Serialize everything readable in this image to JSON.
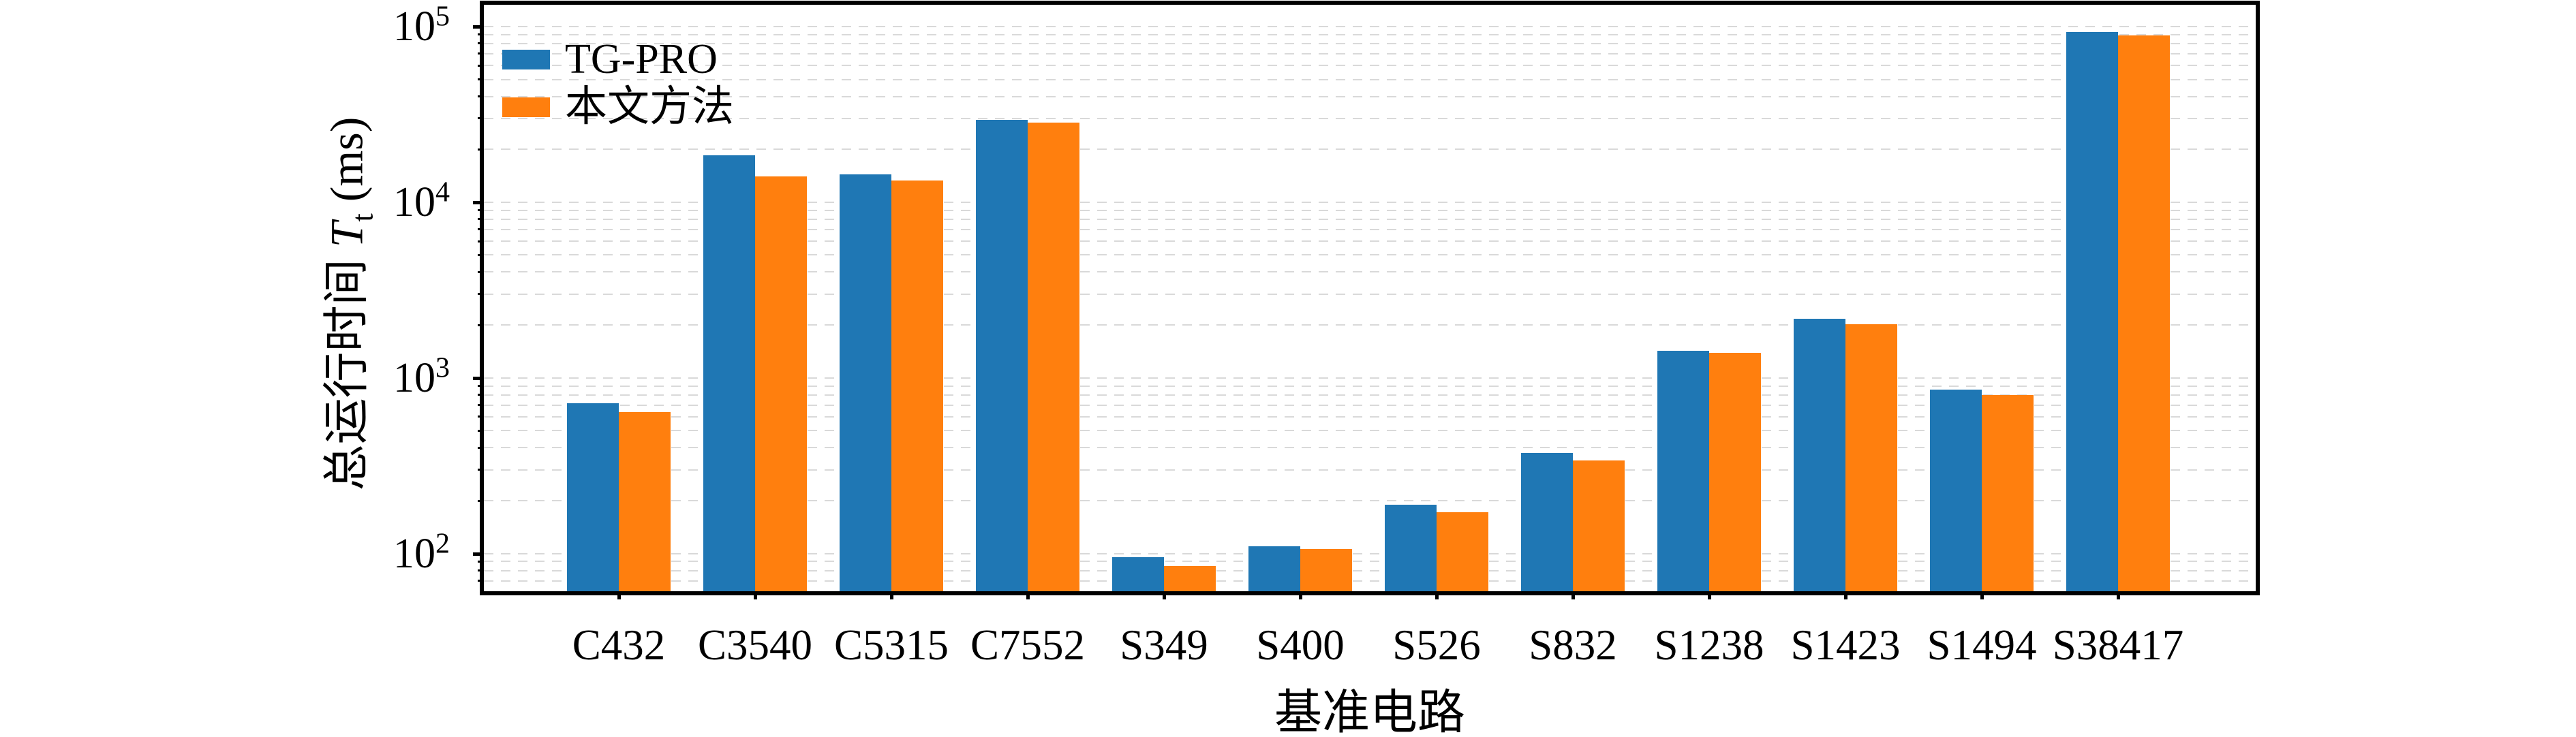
{
  "chart_data": {
    "type": "bar",
    "title": "",
    "categories": [
      "C432",
      "C3540",
      "C5315",
      "C7552",
      "S349",
      "S400",
      "S526",
      "S832",
      "S1238",
      "S1423",
      "S1494",
      "S38417"
    ],
    "series": [
      {
        "name": "TG-PRO",
        "color": "#1f77b4",
        "values": [
          720,
          18500,
          14400,
          29500,
          95,
          110,
          190,
          375,
          1420,
          2170,
          860,
          93000
        ]
      },
      {
        "name": "本文方法",
        "color": "#ff7f0e",
        "values": [
          640,
          14000,
          13300,
          28500,
          85,
          106,
          172,
          340,
          1390,
          2020,
          795,
          89000
        ]
      }
    ],
    "xlabel": "基准电路",
    "ylabel": "总运行时间 T_t (ms)",
    "ylabel_parts": {
      "prefix": "总运行时间 ",
      "var": "T",
      "sub": "t",
      "suffix": " (ms)"
    },
    "yscale": "log",
    "ylim": [
      61,
      133000
    ],
    "yticks_major": [
      {
        "value": 100,
        "base": "10",
        "exp": "2"
      },
      {
        "value": 1000,
        "base": "10",
        "exp": "3"
      },
      {
        "value": 10000,
        "base": "10",
        "exp": "4"
      },
      {
        "value": 100000,
        "base": "10",
        "exp": "5"
      }
    ],
    "yticks_minor": [
      70,
      80,
      90,
      200,
      300,
      400,
      500,
      600,
      700,
      800,
      900,
      2000,
      3000,
      4000,
      5000,
      6000,
      7000,
      8000,
      9000,
      20000,
      30000,
      40000,
      50000,
      60000,
      70000,
      80000,
      90000
    ],
    "grid": "horizontal dashed at major and minor ticks",
    "grid_color": "#d9d9d9",
    "legend_position": "upper left",
    "legend": [
      "TG-PRO",
      "本文方法"
    ]
  },
  "style_colors": {
    "bar_blue": "#1f77b4",
    "bar_orange": "#ff7f0e",
    "axis": "#000000",
    "background": "#ffffff"
  }
}
